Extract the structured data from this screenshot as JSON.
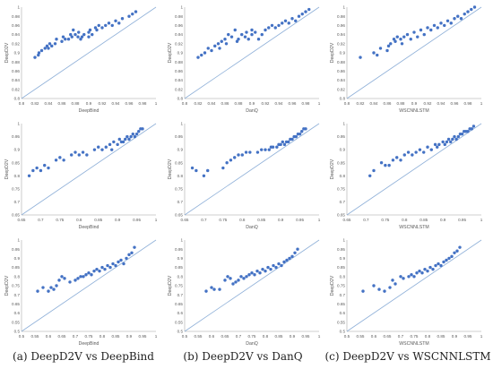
{
  "colors": {
    "point": "#4472C4",
    "diagonal": "#8fb0d8",
    "axis": "#bfbfbf",
    "text": "#595959"
  },
  "captions": [
    "(a) DeepD2V vs DeepBind",
    "(b) DeepD2V vs DanQ",
    "(c) DeepD2V vs WSCNNLSTM"
  ],
  "chart_data": [
    {
      "type": "scatter",
      "xlabel": "DeepBind",
      "ylabel": "DeepD2V",
      "xlim": [
        0.8,
        1
      ],
      "ylim": [
        0.8,
        1
      ],
      "xticks": [
        "0.8",
        "0.82",
        "0.84",
        "0.86",
        "0.88",
        "0.9",
        "0.92",
        "0.94",
        "0.96",
        "0.98",
        "1"
      ],
      "yticks": [
        "0.8",
        "0.82",
        "0.84",
        "0.86",
        "0.88",
        "0.9",
        "0.92",
        "0.94",
        "0.96",
        "0.98",
        "1"
      ],
      "x": [
        0.82,
        0.825,
        0.826,
        0.83,
        0.835,
        0.838,
        0.84,
        0.842,
        0.845,
        0.85,
        0.852,
        0.86,
        0.862,
        0.865,
        0.87,
        0.873,
        0.875,
        0.877,
        0.88,
        0.884,
        0.885,
        0.888,
        0.89,
        0.893,
        0.9,
        0.9,
        0.902,
        0.905,
        0.91,
        0.912,
        0.915,
        0.92,
        0.925,
        0.93,
        0.935,
        0.94,
        0.945,
        0.95,
        0.96,
        0.965,
        0.97
      ],
      "y": [
        0.89,
        0.895,
        0.9,
        0.905,
        0.91,
        0.915,
        0.91,
        0.92,
        0.915,
        0.92,
        0.93,
        0.925,
        0.935,
        0.93,
        0.93,
        0.94,
        0.935,
        0.95,
        0.94,
        0.935,
        0.945,
        0.93,
        0.935,
        0.94,
        0.935,
        0.945,
        0.95,
        0.94,
        0.955,
        0.95,
        0.96,
        0.955,
        0.96,
        0.965,
        0.96,
        0.97,
        0.965,
        0.975,
        0.98,
        0.985,
        0.99
      ]
    },
    {
      "type": "scatter",
      "xlabel": "DanQ",
      "ylabel": "DeepD2V",
      "xlim": [
        0.8,
        1
      ],
      "ylim": [
        0.8,
        1
      ],
      "xticks": [
        "0.8",
        "0.82",
        "0.84",
        "0.86",
        "0.88",
        "0.9",
        "0.92",
        "0.94",
        "0.96",
        "0.98",
        "1"
      ],
      "yticks": [
        "0.8",
        "0.82",
        "0.84",
        "0.86",
        "0.88",
        "0.9",
        "0.92",
        "0.94",
        "0.96",
        "0.98",
        "1"
      ],
      "x": [
        0.82,
        0.825,
        0.83,
        0.835,
        0.84,
        0.845,
        0.85,
        0.852,
        0.855,
        0.86,
        0.862,
        0.865,
        0.87,
        0.875,
        0.878,
        0.88,
        0.885,
        0.89,
        0.892,
        0.895,
        0.9,
        0.9,
        0.905,
        0.91,
        0.915,
        0.92,
        0.925,
        0.93,
        0.935,
        0.94,
        0.945,
        0.95,
        0.955,
        0.96,
        0.965,
        0.97,
        0.975,
        0.98,
        0.985
      ],
      "y": [
        0.89,
        0.895,
        0.9,
        0.91,
        0.905,
        0.915,
        0.92,
        0.91,
        0.925,
        0.93,
        0.92,
        0.94,
        0.935,
        0.95,
        0.925,
        0.93,
        0.94,
        0.935,
        0.945,
        0.93,
        0.94,
        0.95,
        0.945,
        0.93,
        0.94,
        0.95,
        0.955,
        0.96,
        0.955,
        0.96,
        0.965,
        0.97,
        0.965,
        0.975,
        0.97,
        0.98,
        0.985,
        0.99,
        0.995
      ]
    },
    {
      "type": "scatter",
      "xlabel": "WSCNNLSTM",
      "ylabel": "DeepD2V",
      "xlim": [
        0.8,
        1
      ],
      "ylim": [
        0.8,
        1
      ],
      "xticks": [
        "0.8",
        "0.82",
        "0.84",
        "0.86",
        "0.88",
        "0.9",
        "0.92",
        "0.94",
        "0.96",
        "0.98",
        "1"
      ],
      "yticks": [
        "0.8",
        "0.82",
        "0.84",
        "0.86",
        "0.88",
        "0.9",
        "0.92",
        "0.94",
        "0.96",
        "0.98",
        "1"
      ],
      "x": [
        0.82,
        0.84,
        0.845,
        0.85,
        0.86,
        0.862,
        0.865,
        0.87,
        0.872,
        0.875,
        0.88,
        0.882,
        0.885,
        0.89,
        0.895,
        0.9,
        0.905,
        0.91,
        0.915,
        0.92,
        0.925,
        0.93,
        0.935,
        0.94,
        0.945,
        0.95,
        0.955,
        0.96,
        0.965,
        0.97,
        0.975,
        0.98,
        0.985,
        0.99
      ],
      "y": [
        0.89,
        0.9,
        0.895,
        0.91,
        0.905,
        0.915,
        0.92,
        0.93,
        0.925,
        0.935,
        0.93,
        0.92,
        0.935,
        0.94,
        0.93,
        0.945,
        0.935,
        0.95,
        0.94,
        0.955,
        0.95,
        0.96,
        0.955,
        0.965,
        0.96,
        0.97,
        0.965,
        0.975,
        0.98,
        0.975,
        0.985,
        0.99,
        0.995,
        1.0
      ]
    },
    {
      "type": "scatter",
      "xlabel": "DeepBind",
      "ylabel": "DeepD2V",
      "xlim": [
        0.65,
        1
      ],
      "ylim": [
        0.65,
        1
      ],
      "xticks": [
        "0.65",
        "0.7",
        "0.75",
        "0.8",
        "0.85",
        "0.9",
        "0.95",
        "1"
      ],
      "yticks": [
        "0.65",
        "0.7",
        "0.75",
        "0.8",
        "0.85",
        "0.9",
        "0.95",
        "1"
      ],
      "x": [
        0.67,
        0.68,
        0.69,
        0.7,
        0.71,
        0.72,
        0.74,
        0.75,
        0.76,
        0.78,
        0.79,
        0.8,
        0.81,
        0.82,
        0.84,
        0.85,
        0.86,
        0.87,
        0.88,
        0.885,
        0.89,
        0.9,
        0.905,
        0.91,
        0.915,
        0.92,
        0.925,
        0.93,
        0.935,
        0.94,
        0.945,
        0.95,
        0.955,
        0.96,
        0.965
      ],
      "y": [
        0.8,
        0.82,
        0.83,
        0.82,
        0.84,
        0.83,
        0.86,
        0.87,
        0.86,
        0.88,
        0.89,
        0.88,
        0.89,
        0.88,
        0.9,
        0.91,
        0.9,
        0.91,
        0.92,
        0.9,
        0.93,
        0.92,
        0.94,
        0.93,
        0.93,
        0.94,
        0.95,
        0.94,
        0.95,
        0.96,
        0.95,
        0.96,
        0.97,
        0.98,
        0.98
      ]
    },
    {
      "type": "scatter",
      "xlabel": "DanQ",
      "ylabel": "DeepD2V",
      "xlim": [
        0.65,
        1
      ],
      "ylim": [
        0.65,
        1
      ],
      "xticks": [
        "0.65",
        "0.7",
        "0.75",
        "0.8",
        "0.85",
        "0.9",
        "0.95",
        "1"
      ],
      "yticks": [
        "0.65",
        "0.7",
        "0.75",
        "0.8",
        "0.85",
        "0.9",
        "0.95",
        "1"
      ],
      "x": [
        0.67,
        0.68,
        0.7,
        0.71,
        0.75,
        0.76,
        0.77,
        0.78,
        0.79,
        0.8,
        0.81,
        0.82,
        0.84,
        0.85,
        0.86,
        0.87,
        0.875,
        0.88,
        0.89,
        0.895,
        0.9,
        0.905,
        0.91,
        0.915,
        0.92,
        0.925,
        0.93,
        0.935,
        0.94,
        0.945,
        0.95,
        0.955,
        0.96,
        0.965
      ],
      "y": [
        0.83,
        0.82,
        0.8,
        0.82,
        0.83,
        0.85,
        0.86,
        0.87,
        0.88,
        0.88,
        0.89,
        0.89,
        0.89,
        0.9,
        0.9,
        0.9,
        0.91,
        0.91,
        0.91,
        0.92,
        0.92,
        0.93,
        0.92,
        0.93,
        0.93,
        0.94,
        0.94,
        0.95,
        0.95,
        0.96,
        0.96,
        0.97,
        0.98,
        0.98
      ]
    },
    {
      "type": "scatter",
      "xlabel": "WSCNNLSTM",
      "ylabel": "DeepD2V",
      "xlim": [
        0.65,
        1
      ],
      "ylim": [
        0.65,
        1
      ],
      "xticks": [
        "0.65",
        "0.7",
        "0.75",
        "0.8",
        "0.85",
        "0.9",
        "0.95",
        "1"
      ],
      "yticks": [
        "0.65",
        "0.7",
        "0.75",
        "0.8",
        "0.85",
        "0.9",
        "0.95",
        "1"
      ],
      "x": [
        0.71,
        0.72,
        0.74,
        0.75,
        0.76,
        0.77,
        0.78,
        0.79,
        0.8,
        0.81,
        0.82,
        0.83,
        0.84,
        0.85,
        0.86,
        0.87,
        0.88,
        0.885,
        0.89,
        0.9,
        0.905,
        0.91,
        0.915,
        0.92,
        0.925,
        0.93,
        0.935,
        0.94,
        0.945,
        0.95,
        0.955,
        0.96,
        0.965,
        0.97,
        0.975,
        0.98
      ],
      "y": [
        0.8,
        0.82,
        0.85,
        0.84,
        0.84,
        0.86,
        0.87,
        0.86,
        0.88,
        0.89,
        0.88,
        0.89,
        0.9,
        0.89,
        0.91,
        0.9,
        0.92,
        0.91,
        0.92,
        0.93,
        0.92,
        0.93,
        0.94,
        0.93,
        0.94,
        0.95,
        0.94,
        0.95,
        0.96,
        0.96,
        0.97,
        0.97,
        0.97,
        0.98,
        0.98,
        0.99
      ]
    },
    {
      "type": "scatter",
      "xlabel": "DeepBind",
      "ylabel": "DeepD2V",
      "xlim": [
        0.5,
        1
      ],
      "ylim": [
        0.5,
        1
      ],
      "xticks": [
        "0.5",
        "0.55",
        "0.6",
        "0.65",
        "0.7",
        "0.75",
        "0.8",
        "0.85",
        "0.9",
        "0.95",
        "1"
      ],
      "yticks": [
        "0.5",
        "0.55",
        "0.6",
        "0.65",
        "0.7",
        "0.75",
        "0.8",
        "0.85",
        "0.9",
        "0.95",
        "1"
      ],
      "x": [
        0.56,
        0.58,
        0.6,
        0.61,
        0.62,
        0.63,
        0.64,
        0.65,
        0.66,
        0.68,
        0.7,
        0.71,
        0.72,
        0.73,
        0.74,
        0.75,
        0.76,
        0.77,
        0.78,
        0.79,
        0.8,
        0.81,
        0.82,
        0.83,
        0.84,
        0.85,
        0.86,
        0.87,
        0.88,
        0.89,
        0.9,
        0.91,
        0.92
      ],
      "y": [
        0.72,
        0.74,
        0.72,
        0.74,
        0.73,
        0.75,
        0.78,
        0.8,
        0.79,
        0.77,
        0.78,
        0.79,
        0.8,
        0.8,
        0.81,
        0.82,
        0.81,
        0.83,
        0.84,
        0.83,
        0.85,
        0.84,
        0.86,
        0.85,
        0.87,
        0.86,
        0.88,
        0.89,
        0.87,
        0.9,
        0.92,
        0.93,
        0.96
      ]
    },
    {
      "type": "scatter",
      "xlabel": "DanQ",
      "ylabel": "DeepD2V",
      "xlim": [
        0.5,
        1
      ],
      "ylim": [
        0.5,
        1
      ],
      "xticks": [
        "0.5",
        "0.55",
        "0.6",
        "0.65",
        "0.7",
        "0.75",
        "0.8",
        "0.85",
        "0.9",
        "0.95",
        "1"
      ],
      "yticks": [
        "0.5",
        "0.55",
        "0.6",
        "0.65",
        "0.7",
        "0.75",
        "0.8",
        "0.85",
        "0.9",
        "0.95",
        "1"
      ],
      "x": [
        0.58,
        0.6,
        0.61,
        0.63,
        0.65,
        0.66,
        0.67,
        0.68,
        0.69,
        0.7,
        0.71,
        0.72,
        0.73,
        0.74,
        0.75,
        0.76,
        0.77,
        0.78,
        0.79,
        0.8,
        0.81,
        0.82,
        0.83,
        0.84,
        0.85,
        0.86,
        0.87,
        0.88,
        0.89,
        0.9,
        0.91,
        0.92
      ],
      "y": [
        0.72,
        0.74,
        0.73,
        0.73,
        0.78,
        0.8,
        0.79,
        0.76,
        0.77,
        0.78,
        0.8,
        0.79,
        0.8,
        0.81,
        0.82,
        0.81,
        0.83,
        0.82,
        0.84,
        0.83,
        0.85,
        0.84,
        0.86,
        0.85,
        0.87,
        0.86,
        0.88,
        0.89,
        0.9,
        0.91,
        0.93,
        0.95
      ]
    },
    {
      "type": "scatter",
      "xlabel": "WSCNNLSTM",
      "ylabel": "DeepD2V",
      "xlim": [
        0.5,
        1
      ],
      "ylim": [
        0.5,
        1
      ],
      "xticks": [
        "0.5",
        "0.55",
        "0.6",
        "0.65",
        "0.7",
        "0.75",
        "0.8",
        "0.85",
        "0.9",
        "0.95",
        "1"
      ],
      "yticks": [
        "0.5",
        "0.55",
        "0.6",
        "0.65",
        "0.7",
        "0.75",
        "0.8",
        "0.85",
        "0.9",
        "0.95",
        "1"
      ],
      "x": [
        0.56,
        0.6,
        0.62,
        0.64,
        0.66,
        0.67,
        0.68,
        0.7,
        0.71,
        0.73,
        0.74,
        0.75,
        0.76,
        0.77,
        0.78,
        0.79,
        0.8,
        0.81,
        0.82,
        0.83,
        0.84,
        0.85,
        0.86,
        0.87,
        0.88,
        0.89,
        0.9,
        0.91,
        0.92
      ],
      "y": [
        0.72,
        0.75,
        0.73,
        0.72,
        0.74,
        0.78,
        0.76,
        0.8,
        0.79,
        0.8,
        0.81,
        0.8,
        0.82,
        0.83,
        0.82,
        0.84,
        0.83,
        0.85,
        0.84,
        0.86,
        0.87,
        0.86,
        0.88,
        0.89,
        0.9,
        0.91,
        0.93,
        0.94,
        0.96
      ]
    }
  ]
}
